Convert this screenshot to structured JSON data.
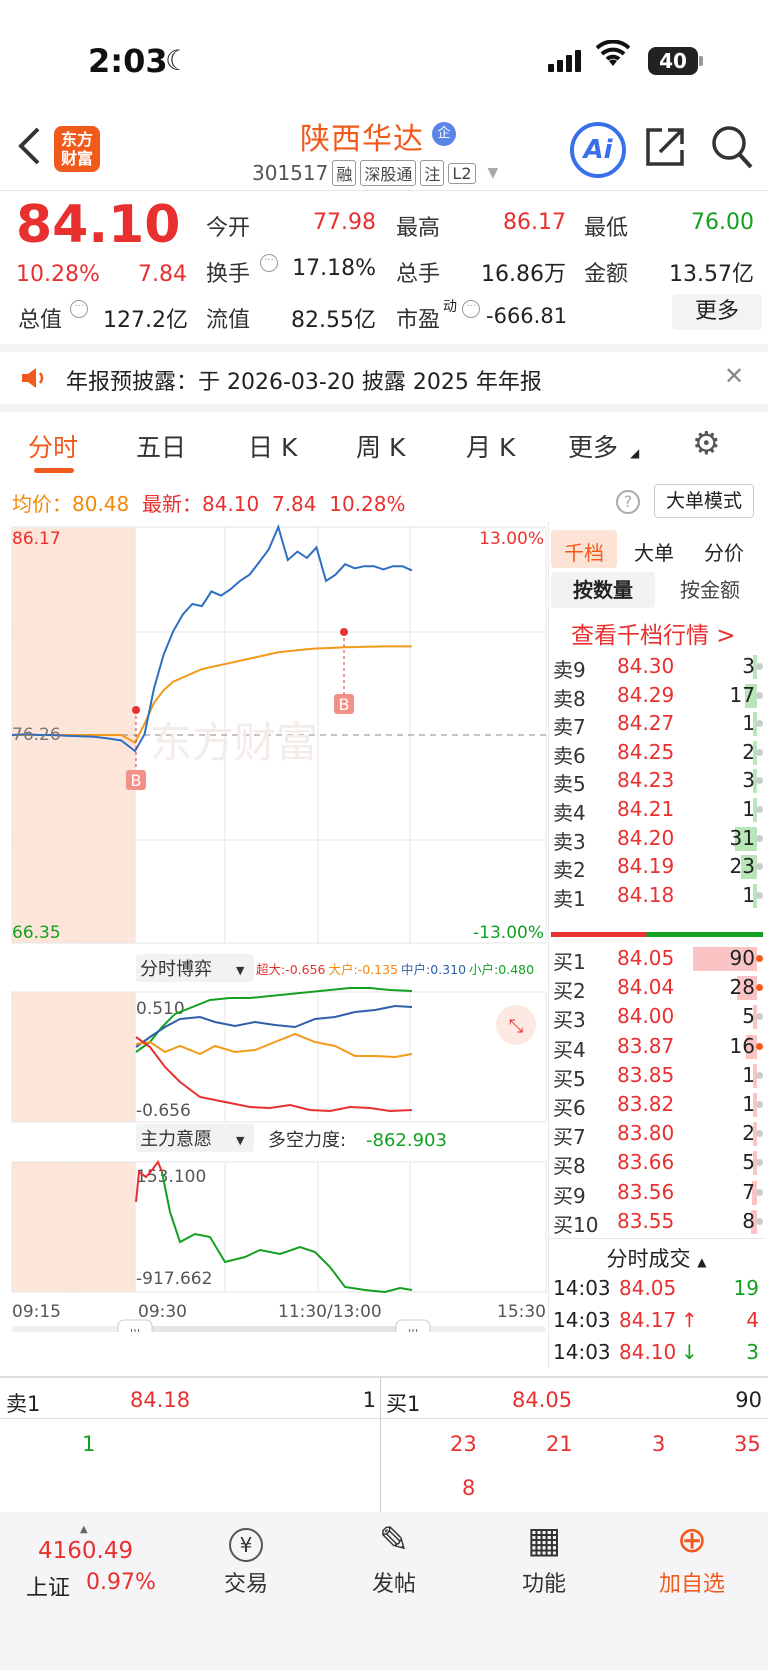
{
  "status_bar": {
    "time": "2:03",
    "battery": "40"
  },
  "header": {
    "logo_line1": "东方",
    "logo_line2": "财富",
    "stock_name": "陕西华达",
    "badge": "企",
    "code": "301517",
    "tags": [
      "融",
      "深股通",
      "注",
      "L2"
    ],
    "ai_label": "Ai"
  },
  "quote": {
    "price": "84.10",
    "change_pct": "10.28%",
    "change": "7.84",
    "open_label": "今开",
    "open": "77.98",
    "high_label": "最高",
    "high": "86.17",
    "low_label": "最低",
    "low": "76.00",
    "turnover_label": "换手",
    "turnover": "17.18%",
    "volume_label": "总手",
    "volume": "16.86万",
    "amount_label": "金额",
    "amount": "13.57亿",
    "mcap_label": "总值",
    "mcap": "127.2亿",
    "float_label": "流值",
    "float_cap": "82.55亿",
    "pe_label": "市盈",
    "pe_sup": "动",
    "pe": "-666.81",
    "more_label": "更多"
  },
  "notice": {
    "text": "年报预披露：于 2026-03-20 披露 2025 年年报"
  },
  "chart_tabs": [
    "分时",
    "五日",
    "日 K",
    "周 K",
    "月 K",
    "更多"
  ],
  "avg_row": {
    "avg_label": "均价：",
    "avg": "80.48",
    "latest_label": "最新：",
    "latest": "84.10",
    "change": "7.84",
    "pct": "10.28%"
  },
  "big_order_mode": "大单模式",
  "chart_data": {
    "type": "line",
    "price_axis": {
      "top": "86.17",
      "mid": "76.26",
      "bottom": "66.35",
      "top_pct": "13.00%",
      "bottom_pct": "-13.00%"
    },
    "x_labels": [
      "09:15",
      "09:30",
      "11:30/13:00",
      "15:30"
    ],
    "markers": [
      "B",
      "B"
    ],
    "series": [
      {
        "color": "#2e6fc4",
        "values": [
          76.26,
          76.3,
          76.26,
          76.26,
          76.22,
          76.2,
          76.18,
          76.1,
          76.0,
          75.5,
          76.3,
          78.5,
          80.1,
          81.2,
          82.0,
          82.5,
          82.4,
          83.1,
          82.9,
          83.2,
          83.6,
          83.9,
          84.5,
          85.1,
          86.17,
          84.6,
          85.0,
          84.7,
          85.2,
          83.6,
          83.9,
          84.4,
          84.2,
          84.3,
          84.3,
          84.15,
          84.3,
          84.3,
          84.1
        ]
      },
      {
        "color": "#f29a1a",
        "values": [
          76.26,
          76.26,
          76.26,
          76.26,
          76.26,
          76.26,
          76.26,
          76.26,
          76.26,
          75.9,
          76.8,
          77.8,
          78.4,
          78.8,
          79.0,
          79.2,
          79.4,
          79.5,
          79.6,
          79.7,
          79.8,
          79.9,
          80.0,
          80.1,
          80.2,
          80.25,
          80.3,
          80.35,
          80.38,
          80.4,
          80.42,
          80.44,
          80.45,
          80.46,
          80.47,
          80.48,
          80.48,
          80.48,
          80.48
        ]
      }
    ],
    "game_panel": {
      "title": "分时博弈",
      "legend": [
        {
          "label": "超大:",
          "value": "-0.656",
          "color": "#e8302f"
        },
        {
          "label": "大户:",
          "value": "-0.135",
          "color": "#f28a0a"
        },
        {
          "label": "中户:",
          "value": "0.310",
          "color": "#2e5fa8"
        },
        {
          "label": "小户:",
          "value": "0.480",
          "color": "#13a020"
        }
      ],
      "top_value": "0.510",
      "bottom_value": "-0.656"
    },
    "main_panel": {
      "title": "主力意愿",
      "force_label": "多空力度:",
      "force": "-862.903",
      "top_value": "153.100",
      "bottom_value": "-917.662"
    }
  },
  "right_panel": {
    "tabs": [
      "千档",
      "大单",
      "分价"
    ],
    "sub_tabs": [
      "按数量",
      "按金额"
    ],
    "look_link": "查看千档行情 >",
    "asks": [
      {
        "label": "卖9",
        "price": "84.30",
        "qty": "3"
      },
      {
        "label": "卖8",
        "price": "84.29",
        "qty": "17"
      },
      {
        "label": "卖7",
        "price": "84.27",
        "qty": "1"
      },
      {
        "label": "卖6",
        "price": "84.25",
        "qty": "2"
      },
      {
        "label": "卖5",
        "price": "84.23",
        "qty": "3"
      },
      {
        "label": "卖4",
        "price": "84.21",
        "qty": "1"
      },
      {
        "label": "卖3",
        "price": "84.20",
        "qty": "31"
      },
      {
        "label": "卖2",
        "price": "84.19",
        "qty": "23"
      },
      {
        "label": "卖1",
        "price": "84.18",
        "qty": "1"
      }
    ],
    "bids": [
      {
        "label": "买1",
        "price": "84.05",
        "qty": "90"
      },
      {
        "label": "买2",
        "price": "84.04",
        "qty": "28"
      },
      {
        "label": "买3",
        "price": "84.00",
        "qty": "5"
      },
      {
        "label": "买4",
        "price": "83.87",
        "qty": "16"
      },
      {
        "label": "买5",
        "price": "83.85",
        "qty": "1"
      },
      {
        "label": "买6",
        "price": "83.82",
        "qty": "1"
      },
      {
        "label": "买7",
        "price": "83.80",
        "qty": "2"
      },
      {
        "label": "买8",
        "price": "83.66",
        "qty": "5"
      },
      {
        "label": "买9",
        "price": "83.56",
        "qty": "7"
      },
      {
        "label": "买10",
        "price": "83.55",
        "qty": "8"
      }
    ],
    "trades_title": "分时成交",
    "trades": [
      {
        "time": "14:03",
        "price": "84.05",
        "arrow": "",
        "qty": "19",
        "qcolor": "#13a020"
      },
      {
        "time": "14:03",
        "price": "84.17",
        "arrow": "↑",
        "qty": "4",
        "qcolor": "#e8302f"
      },
      {
        "time": "14:03",
        "price": "84.10",
        "arrow": "↓",
        "qty": "3",
        "qcolor": "#13a020"
      }
    ]
  },
  "bottom_quote": {
    "sell1_label": "卖1",
    "sell1_price": "84.18",
    "sell1_qty": "1",
    "buy1_label": "买1",
    "buy1_price": "84.05",
    "buy1_qty": "90",
    "sell_queue": [
      "1"
    ],
    "buy_queue": [
      "23",
      "21",
      "3",
      "35",
      "8"
    ]
  },
  "nav": {
    "index_value": "4160.49",
    "index_name": "上证",
    "index_pct": "0.97%",
    "items": [
      {
        "label": "交易",
        "icon": "¥"
      },
      {
        "label": "发帖",
        "icon": "✎"
      },
      {
        "label": "功能",
        "icon": "▦"
      },
      {
        "label": "加自选",
        "icon": "⊕"
      }
    ]
  }
}
